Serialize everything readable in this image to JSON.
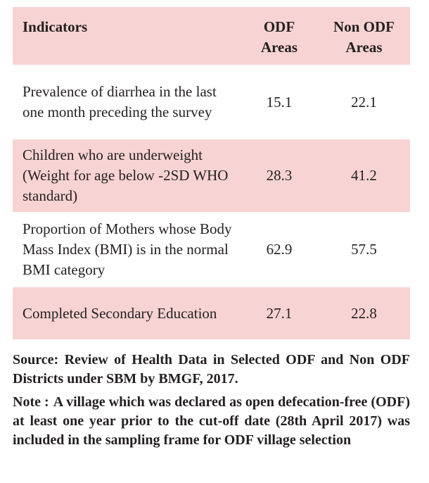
{
  "table": {
    "header": [
      "Indicators",
      "ODF Areas",
      "Non ODF Areas"
    ],
    "rows": [
      [
        "Prevalence of diarrhea in the last one month preceding the survey",
        "15.1",
        "22.1"
      ],
      [
        "Children who are underweight (Weight for age below -2SD WHO standard)",
        "28.3",
        "41.2"
      ],
      [
        "Proportion of Mothers whose Body Mass Index (BMI) is in the normal BMI category",
        "62.9",
        "57.5"
      ],
      [
        "Completed Secondary Education",
        "27.1",
        "22.8"
      ]
    ]
  },
  "source": "Source: Review of Health Data in Selected ODF and Non ODF Districts under SBM by BMGF, 2017.",
  "note": {
    "label": "Note :",
    "text": "A village which was declared as open defecation-free (ODF) at least one year prior to the cut-off date (28th April 2017) was included in the sampling frame for ODF village selection"
  }
}
